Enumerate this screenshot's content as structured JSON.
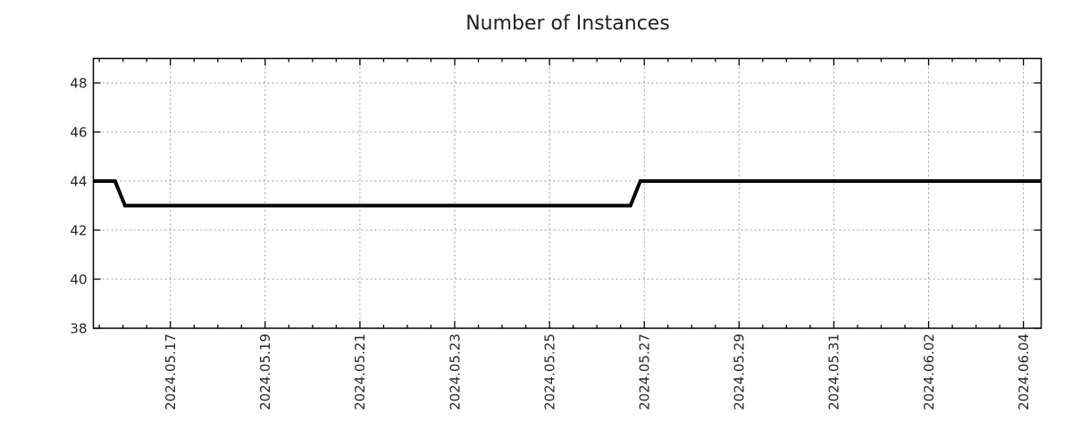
{
  "chart_data": {
    "type": "line",
    "title": "Number of Instances",
    "x_axis": {
      "domain": [
        "2024-05-15 09:00",
        "2024-06-04 09:00"
      ],
      "ticks": [
        {
          "value": "2024-05-17 00:00",
          "label": "2024.05.17"
        },
        {
          "value": "2024-05-19 00:00",
          "label": "2024.05.19"
        },
        {
          "value": "2024-05-21 00:00",
          "label": "2024.05.21"
        },
        {
          "value": "2024-05-23 00:00",
          "label": "2024.05.23"
        },
        {
          "value": "2024-05-25 00:00",
          "label": "2024.05.25"
        },
        {
          "value": "2024-05-27 00:00",
          "label": "2024.05.27"
        },
        {
          "value": "2024-05-29 00:00",
          "label": "2024.05.29"
        },
        {
          "value": "2024-05-31 00:00",
          "label": "2024.05.31"
        },
        {
          "value": "2024-06-02 00:00",
          "label": "2024.06.02"
        },
        {
          "value": "2024-06-04 00:00",
          "label": "2024.06.04"
        }
      ],
      "minor_tick_interval_hours": 12,
      "label_rotation_deg": -90
    },
    "y_axis": {
      "ylim": [
        38,
        49
      ],
      "ticks": [
        38,
        40,
        42,
        44,
        46,
        48
      ]
    },
    "grid": {
      "show": true,
      "style": "dotted",
      "color": "#9a9a9a"
    },
    "legend": {
      "show": false
    },
    "series": [
      {
        "name": "Number of Instances",
        "color": "#000000",
        "line_width": 4,
        "points": [
          {
            "t": "2024-05-15 09:00",
            "v": 44
          },
          {
            "t": "2024-05-15 20:00",
            "v": 44
          },
          {
            "t": "2024-05-16 01:00",
            "v": 43
          },
          {
            "t": "2024-05-26 17:00",
            "v": 43
          },
          {
            "t": "2024-05-26 22:00",
            "v": 44
          },
          {
            "t": "2024-06-04 09:00",
            "v": 44
          }
        ]
      }
    ],
    "colors": {
      "axis": "#000000",
      "text": "#262626",
      "title_text": "#1f1f1f",
      "background": "#ffffff"
    }
  }
}
